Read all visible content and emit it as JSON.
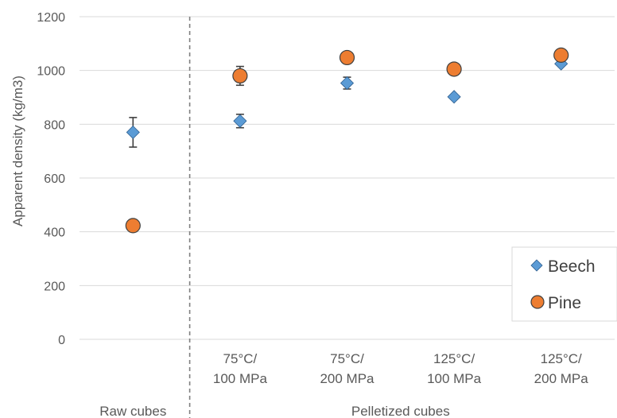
{
  "chart_data": {
    "type": "scatter",
    "ylabel": "Apparent density (kg/m3)",
    "ylim": [
      0,
      1200
    ],
    "yticks": [
      0,
      200,
      400,
      600,
      800,
      1000,
      1200
    ],
    "categories": [
      {
        "id": "raw",
        "lines": [
          ""
        ]
      },
      {
        "id": "75-100",
        "lines": [
          "75°C/",
          "100 MPa"
        ]
      },
      {
        "id": "75-200",
        "lines": [
          "75°C/",
          "200 MPa"
        ]
      },
      {
        "id": "125-100",
        "lines": [
          "125°C/",
          "100 MPa"
        ]
      },
      {
        "id": "125-200",
        "lines": [
          "125°C/",
          "200 MPa"
        ]
      }
    ],
    "groups": [
      {
        "label": "Raw cubes",
        "categories": [
          0
        ]
      },
      {
        "label": "Pelletized cubes",
        "categories": [
          1,
          2,
          3,
          4
        ]
      }
    ],
    "separator_after_category": 0,
    "grid": "horizontal",
    "legend": "bottom-right",
    "series": [
      {
        "name": "Beech",
        "marker": "diamond",
        "color": "#5B9BD5",
        "values": [
          770,
          812,
          953,
          902,
          1025
        ],
        "errors": [
          55,
          25,
          22,
          0,
          0
        ]
      },
      {
        "name": "Pine",
        "marker": "circle",
        "color": "#ED7D31",
        "values": [
          423,
          980,
          1048,
          1005,
          1057
        ],
        "errors": [
          22,
          35,
          0,
          0,
          0
        ]
      }
    ]
  }
}
